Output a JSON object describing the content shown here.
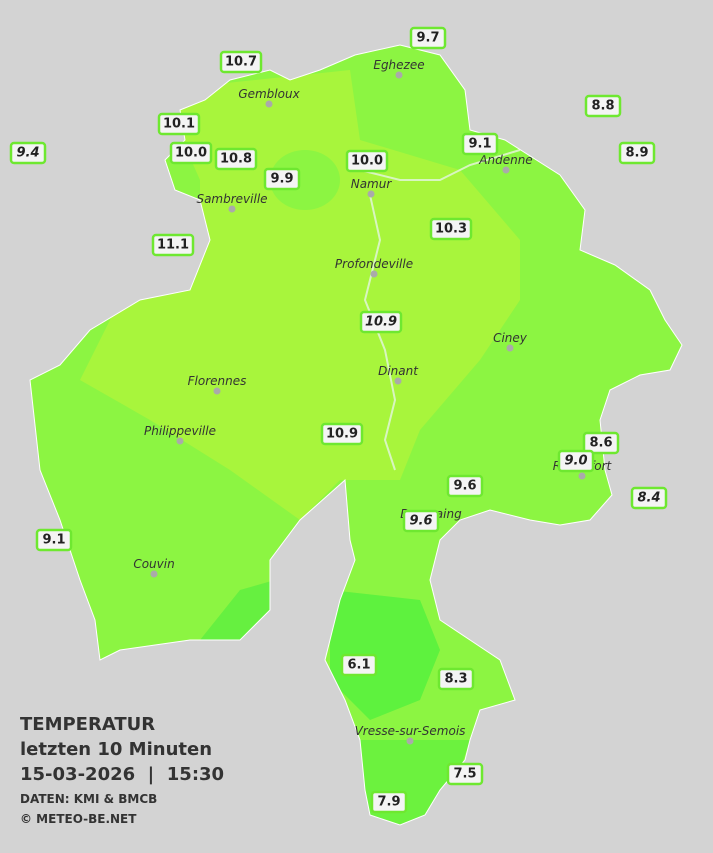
{
  "title": {
    "line1": "TEMPERATUR",
    "line2": "letzten 10 Minuten",
    "line3": "15-03-2026  |  15:30",
    "source": "DATEN: KMI & BMCB",
    "copyright": "© METEO-BE.NET"
  },
  "cities": [
    "Eghezee",
    "Gembloux",
    "Andenne",
    "Namur",
    "Sambreville",
    "Profondeville",
    "Ciney",
    "Dinant",
    "Florennes",
    "Philippeville",
    "Rochefort",
    "Beauraing",
    "Couvin",
    "Vresse-sur-Semois"
  ],
  "stations": [
    "10.7",
    "9.7",
    "8.8",
    "10.1",
    "9.1",
    "9.4",
    "10.0",
    "10.8",
    "10.0",
    "8.9",
    "9.9",
    "10.3",
    "11.1",
    "10.9",
    "8.6",
    "9.0",
    "10.9",
    "9.6",
    "8.4",
    "9.6",
    "9.1",
    "6.1",
    "8.3",
    "7.5",
    "7.9"
  ]
}
